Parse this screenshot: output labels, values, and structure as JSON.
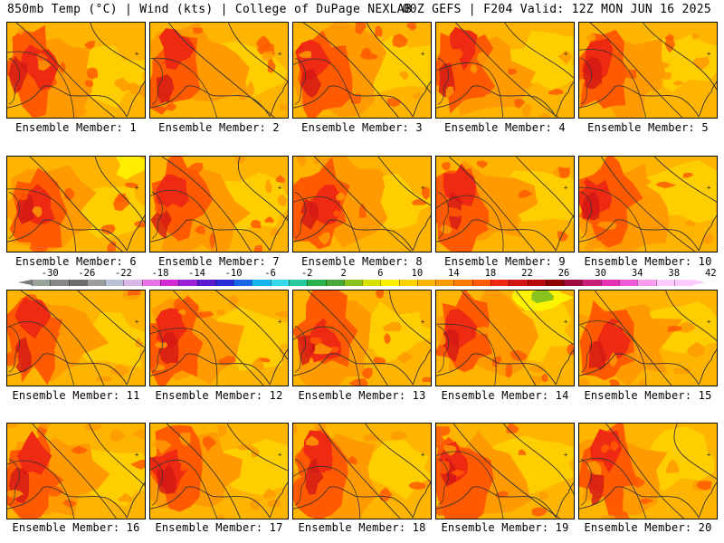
{
  "header": {
    "left": "850mb Temp (°C) | Wind (kts) | College of DuPage NEXLAB",
    "right": "00Z GEFS | F204 Valid: 12Z MON JUN 16 2025"
  },
  "panels": [
    {
      "label": "Ensemble Member: 1"
    },
    {
      "label": "Ensemble Member: 2"
    },
    {
      "label": "Ensemble Member: 3"
    },
    {
      "label": "Ensemble Member: 4"
    },
    {
      "label": "Ensemble Member: 5"
    },
    {
      "label": "Ensemble Member: 6"
    },
    {
      "label": "Ensemble Member: 7"
    },
    {
      "label": "Ensemble Member: 8"
    },
    {
      "label": "Ensemble Member: 9"
    },
    {
      "label": "Ensemble Member: 10"
    },
    {
      "label": "Ensemble Member: 11"
    },
    {
      "label": "Ensemble Member: 12"
    },
    {
      "label": "Ensemble Member: 13"
    },
    {
      "label": "Ensemble Member: 14"
    },
    {
      "label": "Ensemble Member: 15"
    },
    {
      "label": "Ensemble Member: 16"
    },
    {
      "label": "Ensemble Member: 17"
    },
    {
      "label": "Ensemble Member: 18"
    },
    {
      "label": "Ensemble Member: 19"
    },
    {
      "label": "Ensemble Member: 20"
    }
  ],
  "colorbar": {
    "ticks": [
      "-30",
      "-26",
      "-22",
      "-18",
      "-14",
      "-10",
      "-6",
      "-2",
      "2",
      "6",
      "10",
      "14",
      "18",
      "22",
      "26",
      "30",
      "34",
      "38",
      "42"
    ],
    "colors": [
      "#9aa49a",
      "#878787",
      "#6e6e6e",
      "#9c9c9c",
      "#b8c4d6",
      "#d9b8e8",
      "#e873e8",
      "#d12bd6",
      "#9b1fd6",
      "#5a1ad0",
      "#2a2ad6",
      "#1a66e8",
      "#18b4f0",
      "#38d8e8",
      "#27c9a0",
      "#2ab34c",
      "#48a83a",
      "#8ac21e",
      "#d8e000",
      "#fff200",
      "#ffd200",
      "#ffb400",
      "#ff9a00",
      "#ff7a00",
      "#ff5a00",
      "#ee2a12",
      "#d21616",
      "#b80c0c",
      "#8c0000",
      "#a00a3c",
      "#c81e78",
      "#e632b4",
      "#f05ad8",
      "#ff9cf0",
      "#ffcaff",
      "#ffcaff"
    ]
  },
  "map_colors": {
    "orange": "#ffb400",
    "light_orange": "#ffd200",
    "dark_orange": "#ff9a00",
    "red_orange": "#ff5a00",
    "red": "#ee2a12",
    "dark_red": "#d21616",
    "yellow": "#fff200",
    "green": "#8ac21e"
  }
}
